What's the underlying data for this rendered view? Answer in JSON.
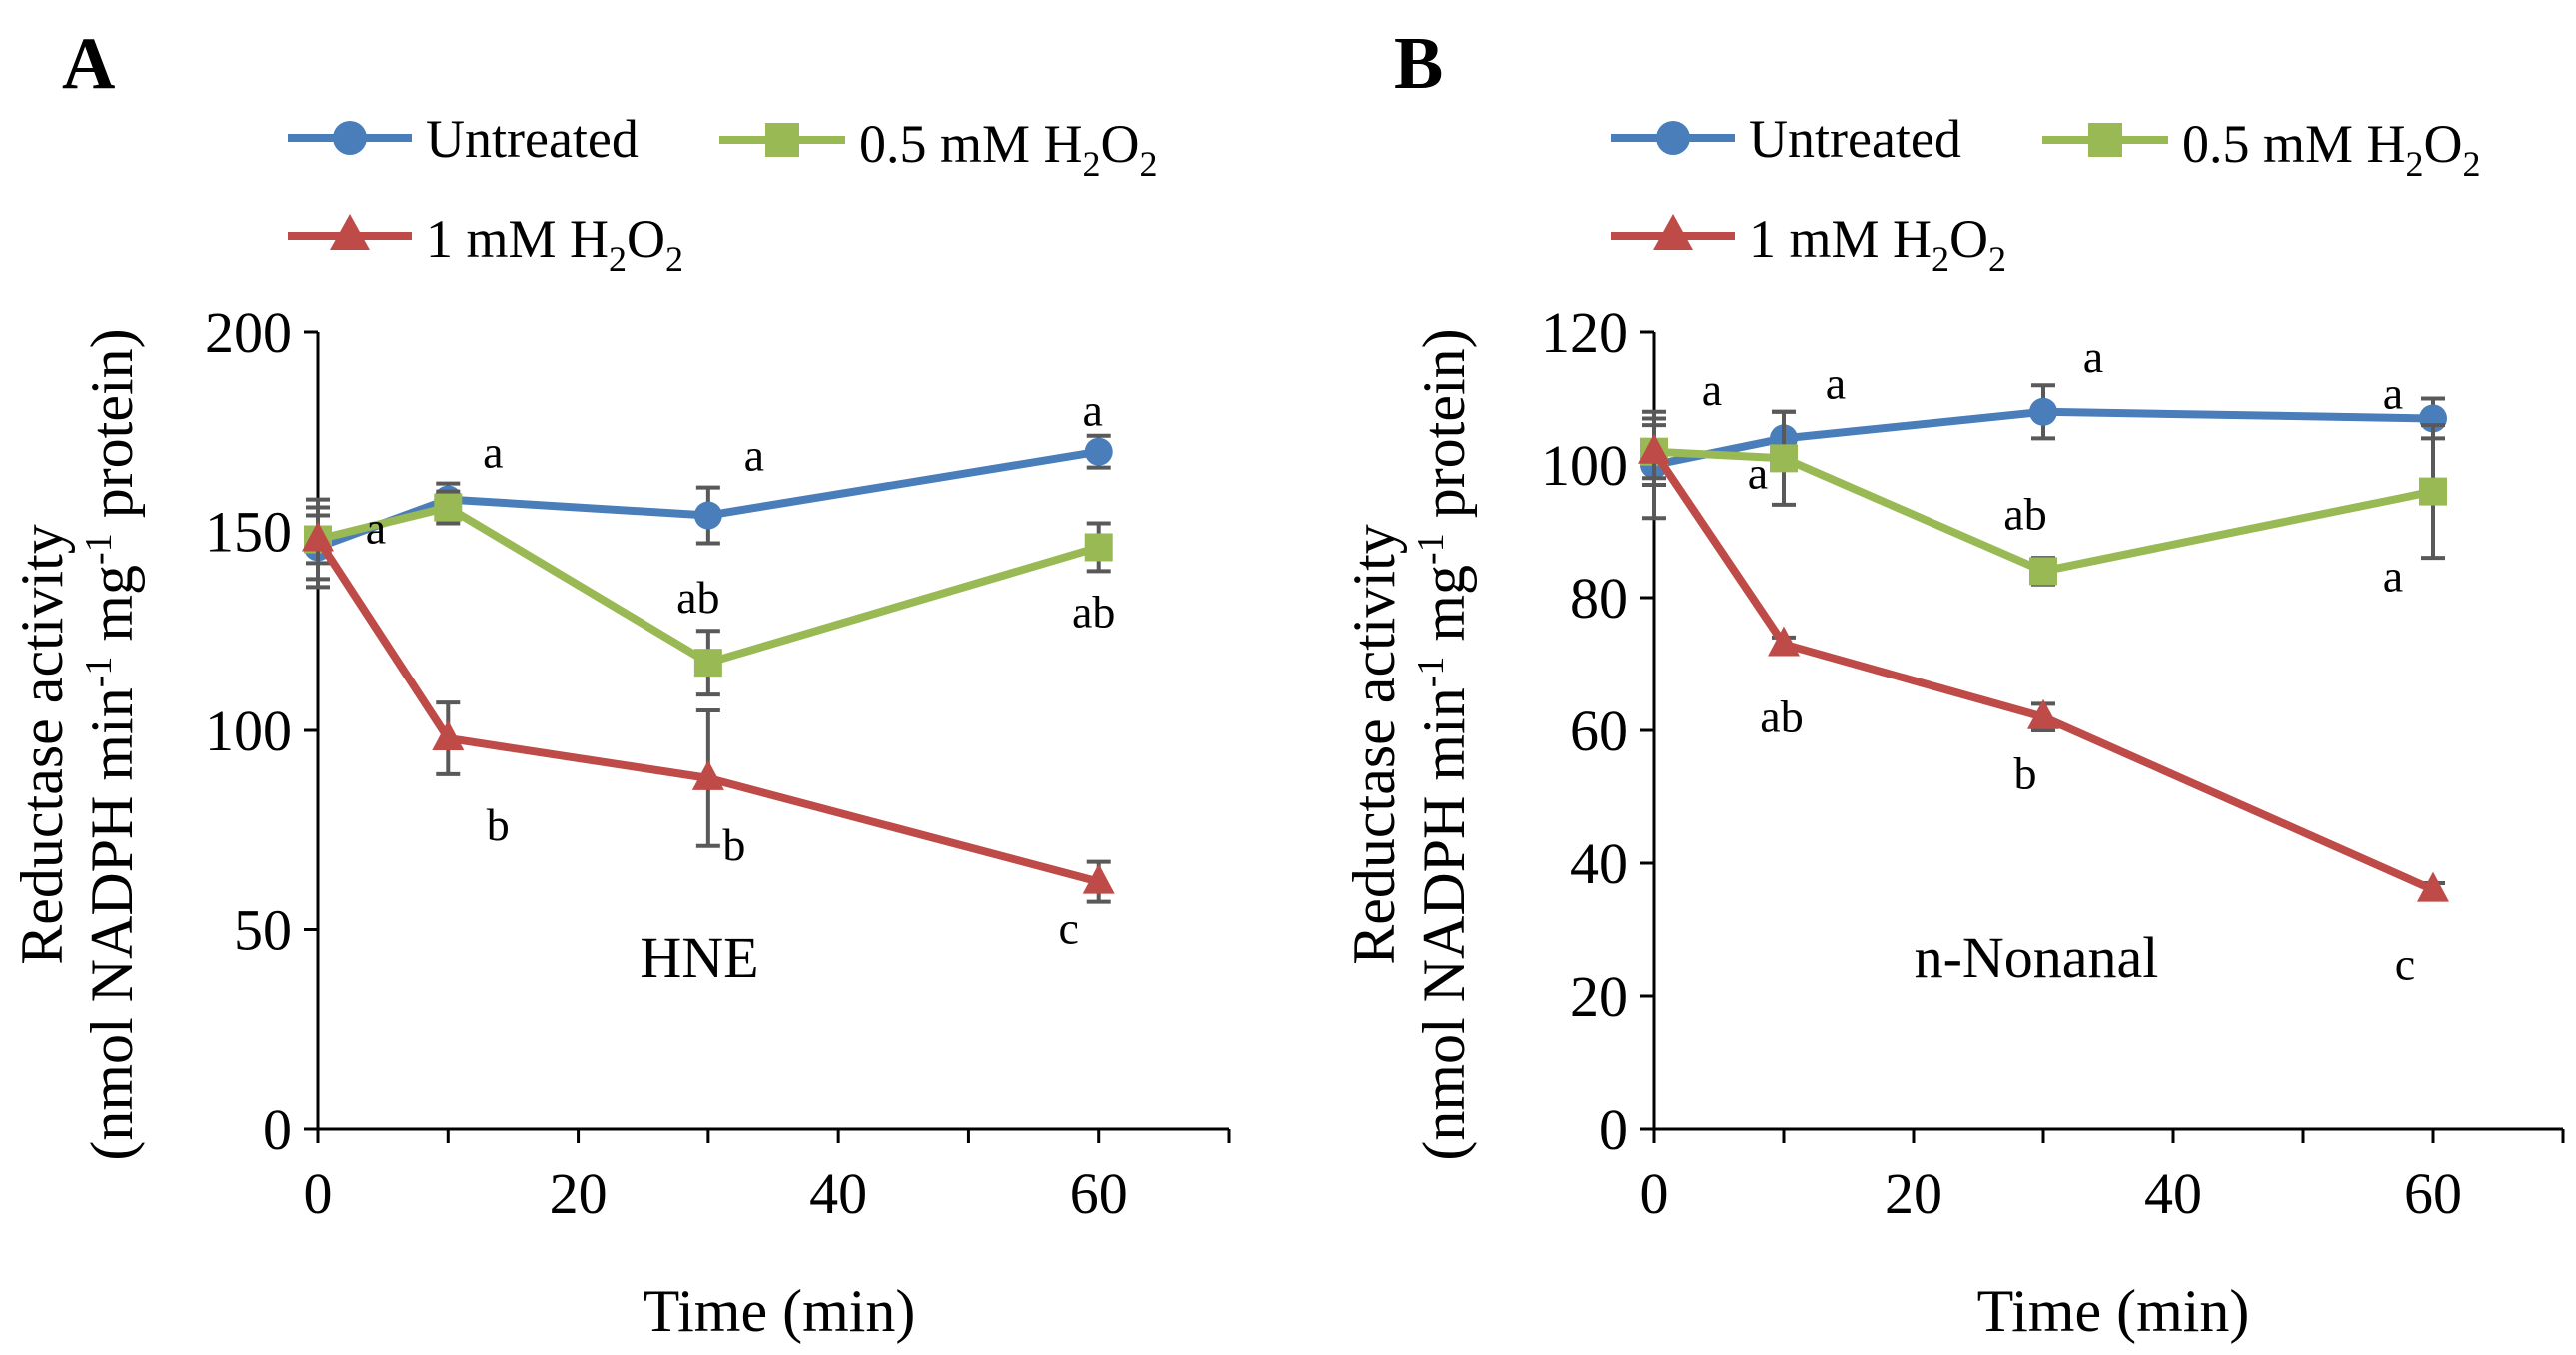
{
  "series_style": [
    {
      "name": "Untreated",
      "marker": "circle",
      "color": "#4A7EBB"
    },
    {
      "name": "0.5 mM H2O2",
      "marker": "square",
      "color": "#98B954"
    },
    {
      "name": "1 mM H2O2",
      "marker": "triangle",
      "color": "#BE4B48"
    }
  ],
  "legend": {
    "untreated": "Untreated",
    "h2o2_05_prefix": "0.5 mM H",
    "h2o2_1_prefix": "1 mM H",
    "sub2": "2",
    "O": "O"
  },
  "chart_data": [
    {
      "id": "A",
      "type": "line",
      "panel_label": "A",
      "inner_label": "HNE",
      "xlabel": "Time (min)",
      "ylabel_line1": "Reductase activity",
      "ylabel_line2": "(nmol NADPH min-1 mg-1 protein)",
      "ylabel_parts": [
        "(nmol NADPH min",
        "-1",
        " mg",
        "-1",
        " protein)"
      ],
      "xlim": [
        0,
        70
      ],
      "ylim": [
        0,
        200
      ],
      "xticks": [
        0,
        20,
        40,
        60
      ],
      "yticks": [
        0,
        50,
        100,
        150,
        200
      ],
      "x": [
        0,
        10,
        30,
        60
      ],
      "series": [
        {
          "name": "Untreated",
          "values": [
            146,
            158,
            154,
            170
          ],
          "errors": [
            10,
            4,
            7,
            4
          ],
          "labels": [
            "",
            "a",
            "a",
            "a"
          ]
        },
        {
          "name": "0.5 mM H2O2",
          "values": [
            148,
            156,
            117,
            146
          ],
          "errors": [
            6,
            4,
            8,
            6
          ],
          "labels": [
            "a",
            "",
            "ab",
            "ab"
          ]
        },
        {
          "name": "1 mM H2O2",
          "values": [
            148,
            98,
            88,
            62
          ],
          "errors": [
            10,
            9,
            17,
            5
          ],
          "labels": [
            "",
            "b",
            "b",
            "c"
          ]
        }
      ]
    },
    {
      "id": "B",
      "type": "line",
      "panel_label": "B",
      "inner_label": "n-Nonanal",
      "xlabel": "Time (min)",
      "ylabel_line1": "Reductase activity",
      "ylabel_line2": "(nmol NADPH min-1 mg-1 protein)",
      "ylabel_parts": [
        "(nmol NADPH min",
        "-1",
        " mg",
        "-1",
        " protein)"
      ],
      "xlim": [
        0,
        70
      ],
      "ylim": [
        0,
        120
      ],
      "xticks": [
        0,
        20,
        40,
        60
      ],
      "yticks": [
        0,
        20,
        40,
        60,
        80,
        100,
        120
      ],
      "x": [
        0,
        10,
        30,
        60
      ],
      "series": [
        {
          "name": "Untreated",
          "values": [
            100,
            104,
            108,
            107
          ],
          "errors": [
            8,
            4,
            4,
            3
          ],
          "labels": [
            "a",
            "a",
            "a",
            "a"
          ]
        },
        {
          "name": "0.5 mM H2O2",
          "values": [
            102,
            101,
            84,
            96
          ],
          "errors": [
            4,
            7,
            2,
            10
          ],
          "labels": [
            "",
            "a",
            "ab",
            "a"
          ]
        },
        {
          "name": "1 mM H2O2",
          "values": [
            102,
            73,
            62,
            36
          ],
          "errors": [
            5,
            1,
            2,
            1
          ],
          "labels": [
            "",
            "ab",
            "b",
            "c"
          ]
        }
      ]
    }
  ]
}
